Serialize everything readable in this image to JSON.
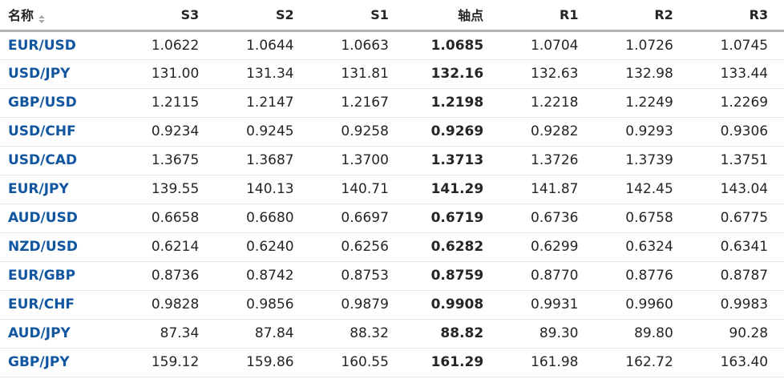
{
  "table": {
    "columns": [
      {
        "label": "名称"
      },
      {
        "label": "S3"
      },
      {
        "label": "S2"
      },
      {
        "label": "S1"
      },
      {
        "label": "轴点"
      },
      {
        "label": "R1"
      },
      {
        "label": "R2"
      },
      {
        "label": "R3"
      }
    ],
    "pivot_column_index": 3,
    "rows": [
      {
        "pair": "EUR/USD",
        "values": [
          "1.0622",
          "1.0644",
          "1.0663",
          "1.0685",
          "1.0704",
          "1.0726",
          "1.0745"
        ]
      },
      {
        "pair": "USD/JPY",
        "values": [
          "131.00",
          "131.34",
          "131.81",
          "132.16",
          "132.63",
          "132.98",
          "133.44"
        ]
      },
      {
        "pair": "GBP/USD",
        "values": [
          "1.2115",
          "1.2147",
          "1.2167",
          "1.2198",
          "1.2218",
          "1.2249",
          "1.2269"
        ]
      },
      {
        "pair": "USD/CHF",
        "values": [
          "0.9234",
          "0.9245",
          "0.9258",
          "0.9269",
          "0.9282",
          "0.9293",
          "0.9306"
        ]
      },
      {
        "pair": "USD/CAD",
        "values": [
          "1.3675",
          "1.3687",
          "1.3700",
          "1.3713",
          "1.3726",
          "1.3739",
          "1.3751"
        ]
      },
      {
        "pair": "EUR/JPY",
        "values": [
          "139.55",
          "140.13",
          "140.71",
          "141.29",
          "141.87",
          "142.45",
          "143.04"
        ]
      },
      {
        "pair": "AUD/USD",
        "values": [
          "0.6658",
          "0.6680",
          "0.6697",
          "0.6719",
          "0.6736",
          "0.6758",
          "0.6775"
        ]
      },
      {
        "pair": "NZD/USD",
        "values": [
          "0.6214",
          "0.6240",
          "0.6256",
          "0.6282",
          "0.6299",
          "0.6324",
          "0.6341"
        ]
      },
      {
        "pair": "EUR/GBP",
        "values": [
          "0.8736",
          "0.8742",
          "0.8753",
          "0.8759",
          "0.8770",
          "0.8776",
          "0.8787"
        ]
      },
      {
        "pair": "EUR/CHF",
        "values": [
          "0.9828",
          "0.9856",
          "0.9879",
          "0.9908",
          "0.9931",
          "0.9960",
          "0.9983"
        ]
      },
      {
        "pair": "AUD/JPY",
        "values": [
          "87.34",
          "87.84",
          "88.32",
          "88.82",
          "89.30",
          "89.80",
          "90.28"
        ]
      },
      {
        "pair": "GBP/JPY",
        "values": [
          "159.12",
          "159.86",
          "160.55",
          "161.29",
          "161.98",
          "162.72",
          "163.40"
        ]
      }
    ]
  },
  "colors": {
    "pair_link": "#1256a0",
    "text": "#232526",
    "row_divider": "#e5e5e5",
    "header_divider": "#b5b5b5",
    "sort_icon": "#a9a9a9"
  }
}
